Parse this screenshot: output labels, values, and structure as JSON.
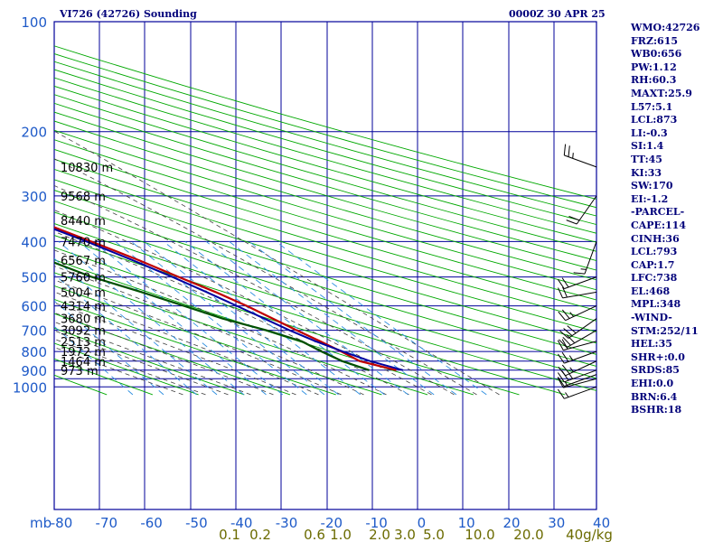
{
  "header": {
    "title": "VI726 (42726) Sounding",
    "time": "0000Z 30 APR 25"
  },
  "indices": [
    "WMO:42726",
    "FRZ:615",
    "WB0:656",
    "PW:1.12",
    "RH:60.3",
    "MAXT:25.9",
    "L57:5.1",
    "LCL:873",
    "LI:-0.3",
    "SI:1.4",
    "TT:45",
    "KI:33",
    "SW:170",
    "EI:-1.2",
    "-PARCEL-",
    "CAPE:114",
    "CINH:36",
    "LCL:793",
    "CAP:1.7",
    "LFC:738",
    "EL:468",
    "MPL:348",
    "-WIND-",
    "STM:252/11",
    "HEL:35",
    "SHR+:0.0",
    "SRDS:85",
    "EHI:0.0",
    "BRN:6.4",
    "BSHR:18"
  ],
  "colors": {
    "background": "#ffffff",
    "isobar_isotherm_grid": "#00009a",
    "dry_adiabats": "#00a800",
    "moist_adiabats": "#3e3e3e",
    "mixing_ratio": "#2e8fe0",
    "temperature": "#c00000",
    "dewpoint": "#005000",
    "parcel": "#0000a0",
    "wind_barbs": "#000000",
    "labels": "#00007a"
  },
  "chart_data": {
    "type": "line",
    "title": "VI726 (42726) Sounding",
    "x_unit_label": "mb",
    "y_axis": "pressure (mb), log scale",
    "ylim": [
      1000,
      100
    ],
    "pressure_ticks": [
      "100",
      "200",
      "300",
      "400",
      "500",
      "600",
      "700",
      "800",
      "900",
      "1000"
    ],
    "x_ticks": [
      "-80",
      "-70",
      "-60",
      "-50",
      "-40",
      "-30",
      "-20",
      "-10",
      "0",
      "10",
      "20",
      "30",
      "40"
    ],
    "mixing_ratio_labels": [
      "0.1",
      "0.2",
      "0.6",
      "1.0",
      "2.0",
      "3.0",
      "5.0",
      "10.0",
      "20.0",
      "40g/kg"
    ],
    "height_labels": [
      {
        "p": 250,
        "text": "10830 m"
      },
      {
        "p": 300,
        "text": "9568 m"
      },
      {
        "p": 350,
        "text": "8440 m"
      },
      {
        "p": 400,
        "text": "7470 m"
      },
      {
        "p": 450,
        "text": "6567 m"
      },
      {
        "p": 500,
        "text": "5760 m"
      },
      {
        "p": 550,
        "text": "5004 m"
      },
      {
        "p": 600,
        "text": "4314 m"
      },
      {
        "p": 650,
        "text": "3680 m"
      },
      {
        "p": 700,
        "text": "3092 m"
      },
      {
        "p": 750,
        "text": "2513 m"
      },
      {
        "p": 800,
        "text": "1972 m"
      },
      {
        "p": 850,
        "text": "1464 m"
      },
      {
        "p": 900,
        "text": "973 m"
      }
    ],
    "series": [
      {
        "key": "temperature",
        "points": [
          [
            900,
            22
          ],
          [
            850,
            15.7
          ],
          [
            800,
            13.5
          ],
          [
            750,
            10.8
          ],
          [
            700,
            7.8
          ],
          [
            650,
            4.8
          ],
          [
            600,
            1.5
          ],
          [
            550,
            -2.7
          ],
          [
            500,
            -7.9
          ],
          [
            450,
            -13.4
          ],
          [
            400,
            -20.3
          ],
          [
            350,
            -28.3
          ],
          [
            300,
            -38.2
          ],
          [
            250,
            -49.3
          ]
        ]
      },
      {
        "key": "dewpoint",
        "points": [
          [
            900,
            16
          ],
          [
            850,
            11.8
          ],
          [
            800,
            9.1
          ],
          [
            750,
            6.7
          ],
          [
            700,
            1.1
          ],
          [
            650,
            -6.3
          ],
          [
            600,
            -12.4
          ],
          [
            550,
            -19.1
          ],
          [
            500,
            -27.1
          ],
          [
            450,
            -33.5
          ],
          [
            400,
            -39.6
          ],
          [
            350,
            -45.5
          ],
          [
            300,
            -51.5
          ],
          [
            250,
            -76.5
          ]
        ]
      },
      {
        "key": "parcel",
        "points": [
          [
            900,
            23.5
          ],
          [
            850,
            18
          ],
          [
            800,
            13.8
          ],
          [
            750,
            9.8
          ],
          [
            700,
            6.2
          ],
          [
            650,
            2.9
          ],
          [
            600,
            -0.7
          ],
          [
            550,
            -4.7
          ],
          [
            500,
            -9.3
          ],
          [
            450,
            -14.8
          ],
          [
            400,
            -21.3
          ],
          [
            350,
            -29.4
          ],
          [
            300,
            -39.8
          ],
          [
            250,
            -53
          ],
          [
            200,
            -69.9
          ],
          [
            150,
            -92.9
          ],
          [
            137,
            -99
          ]
        ]
      }
    ],
    "winds": [
      {
        "p": 1000,
        "dir": 250,
        "spd": 15
      },
      {
        "p": 950,
        "dir": 255,
        "spd": 15
      },
      {
        "p": 925,
        "dir": 250,
        "spd": 10
      },
      {
        "p": 900,
        "dir": 250,
        "spd": 25
      },
      {
        "p": 850,
        "dir": 245,
        "spd": 25
      },
      {
        "p": 800,
        "dir": 250,
        "spd": 25
      },
      {
        "p": 750,
        "dir": 255,
        "spd": 20
      },
      {
        "p": 700,
        "dir": 240,
        "spd": 30
      },
      {
        "p": 650,
        "dir": 235,
        "spd": 30
      },
      {
        "p": 600,
        "dir": 245,
        "spd": 25
      },
      {
        "p": 550,
        "dir": 260,
        "spd": 20
      },
      {
        "p": 500,
        "dir": 250,
        "spd": 20
      },
      {
        "p": 400,
        "dir": 200,
        "spd": 15
      },
      {
        "p": 300,
        "dir": 215,
        "spd": 20
      },
      {
        "p": 250,
        "dir": 290,
        "spd": 25
      }
    ],
    "grid": true
  }
}
